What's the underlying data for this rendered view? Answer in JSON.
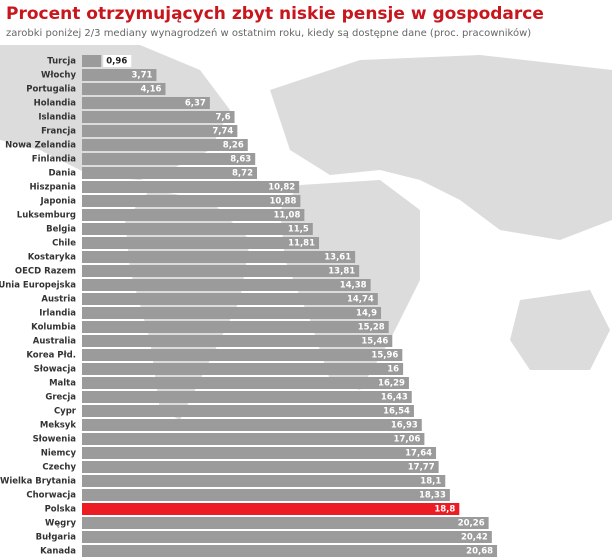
{
  "chart_data": {
    "type": "bar",
    "orientation": "horizontal",
    "title": "Procent otrzymujących zbyt niskie pensje w gospodarce",
    "subtitle": "zarobki poniżej 2/3 mediany wynagrodzeń w ostatnim roku, kiedy są dostępne dane (proc. pracowników)",
    "categories": [
      "Turcja",
      "Włochy",
      "Portugalia",
      "Holandia",
      "Islandia",
      "Francja",
      "Nowa Zelandia",
      "Finlandia",
      "Dania",
      "Hiszpania",
      "Japonia",
      "Luksemburg",
      "Belgia",
      "Chile",
      "Kostaryka",
      "OECD Razem",
      "Unia Europejska",
      "Austria",
      "Irlandia",
      "Kolumbia",
      "Australia",
      "Korea Płd.",
      "Słowacja",
      "Malta",
      "Grecja",
      "Cypr",
      "Meksyk",
      "Słowenia",
      "Niemcy",
      "Czechy",
      "Wielka Brytania",
      "Chorwacja",
      "Polska",
      "Węgry",
      "Bułgaria",
      "Kanada"
    ],
    "values": [
      0.96,
      3.71,
      4.16,
      6.37,
      7.6,
      7.74,
      8.26,
      8.63,
      8.72,
      10.82,
      10.88,
      11.08,
      11.5,
      11.81,
      13.61,
      13.81,
      14.38,
      14.74,
      14.9,
      15.28,
      15.46,
      15.96,
      16,
      16.29,
      16.43,
      16.54,
      16.93,
      17.06,
      17.64,
      17.77,
      18.1,
      18.33,
      18.8,
      20.26,
      20.42,
      20.68
    ],
    "value_labels": [
      "0,96",
      "3,71",
      "4,16",
      "6,37",
      "7,6",
      "7,74",
      "8,26",
      "8,63",
      "8,72",
      "10,82",
      "10,88",
      "11,08",
      "11,5",
      "11,81",
      "13,61",
      "13,81",
      "14,38",
      "14,74",
      "14,9",
      "15,28",
      "15,46",
      "15,96",
      "16",
      "16,29",
      "16,43",
      "16,54",
      "16,93",
      "17,06",
      "17,64",
      "17,77",
      "18,1",
      "18,33",
      "18,8",
      "20,26",
      "20,42",
      "20,68"
    ],
    "colors": [
      "#9b9b9b",
      "#9b9b9b",
      "#9b9b9b",
      "#9b9b9b",
      "#9b9b9b",
      "#9b9b9b",
      "#9b9b9b",
      "#9b9b9b",
      "#9b9b9b",
      "#9b9b9b",
      "#9b9b9b",
      "#9b9b9b",
      "#9b9b9b",
      "#9b9b9b",
      "#9b9b9b",
      "#9b9b9b",
      "#9b9b9b",
      "#9b9b9b",
      "#9b9b9b",
      "#9b9b9b",
      "#9b9b9b",
      "#9b9b9b",
      "#9b9b9b",
      "#9b9b9b",
      "#9b9b9b",
      "#9b9b9b",
      "#9b9b9b",
      "#9b9b9b",
      "#9b9b9b",
      "#9b9b9b",
      "#9b9b9b",
      "#9b9b9b",
      "#ec1c24",
      "#9b9b9b",
      "#9b9b9b",
      "#9b9b9b"
    ]
  }
}
